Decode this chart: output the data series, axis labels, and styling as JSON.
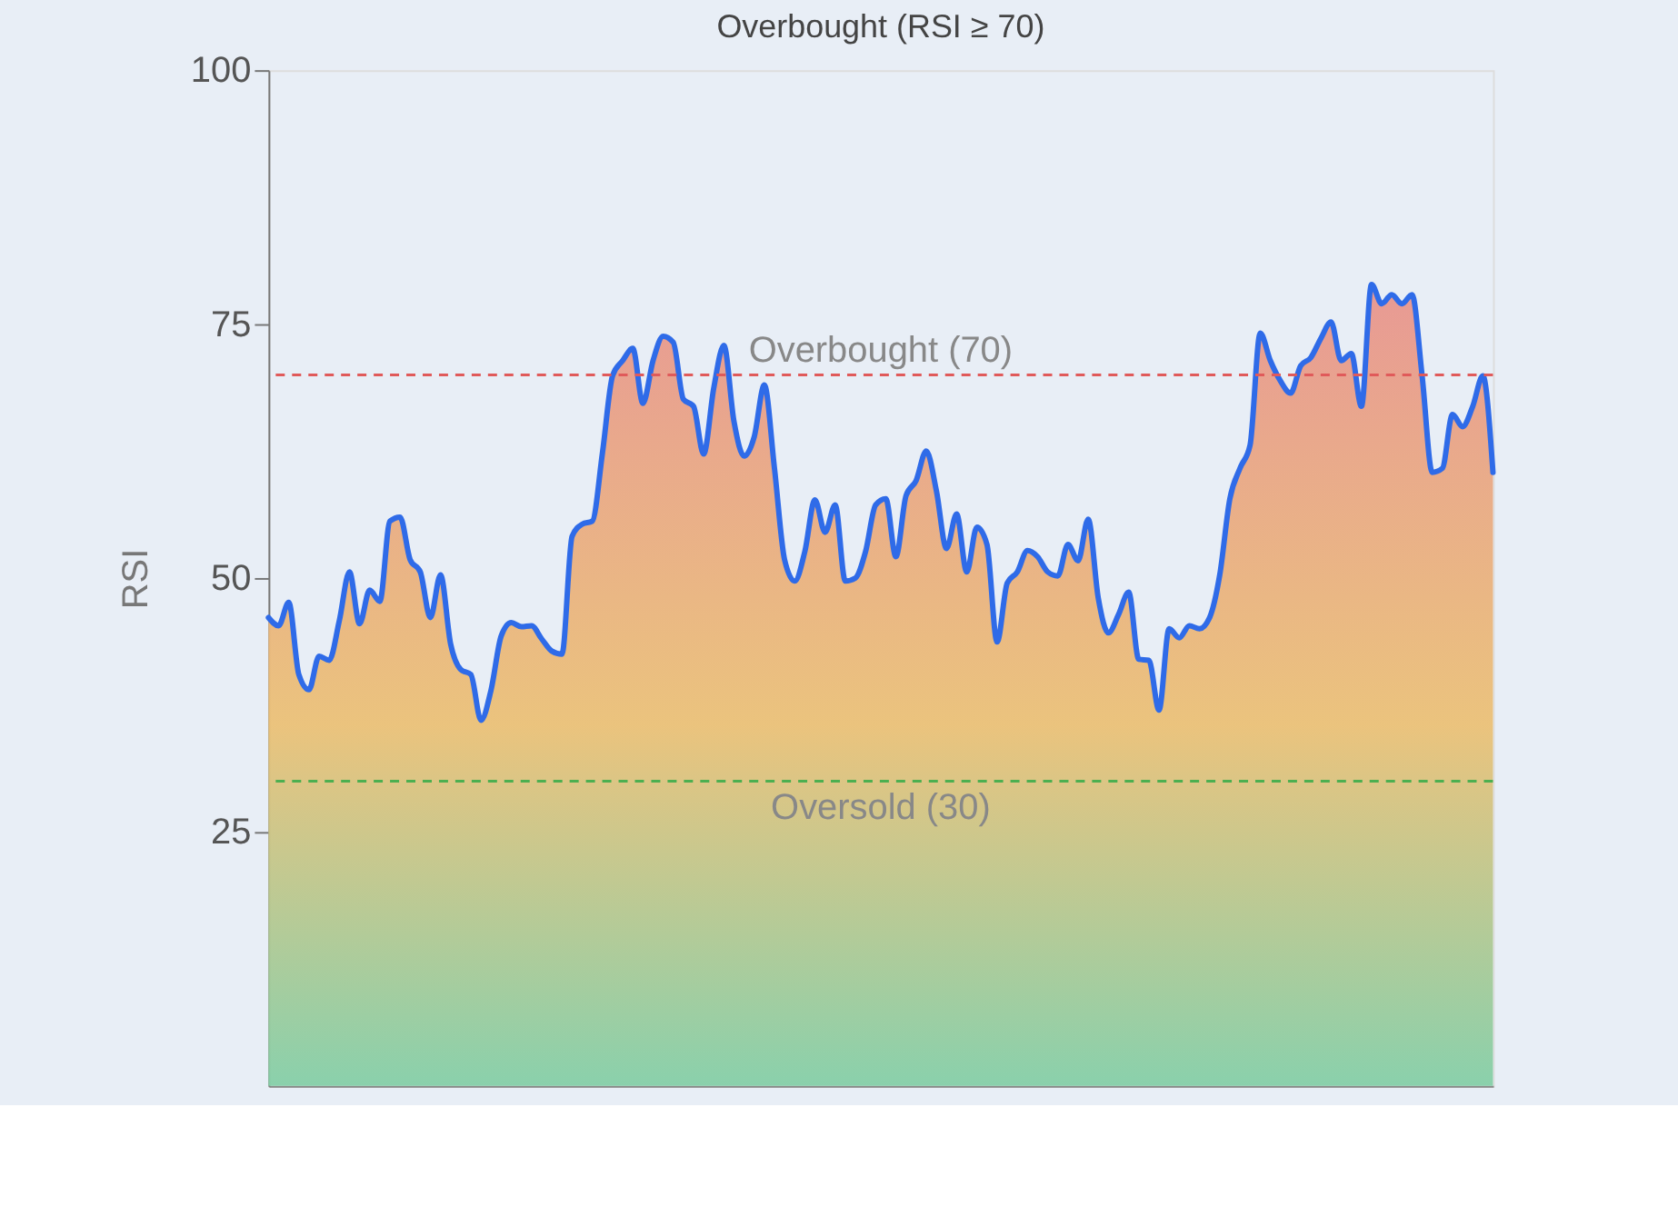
{
  "chart_data": {
    "type": "area",
    "annotations": [
      "Overbought (RSI ≥ 70)"
    ],
    "ylabel": "RSI",
    "categories": [
      null,
      null,
      null,
      null,
      null,
      null,
      null,
      null,
      null,
      null,
      null,
      null,
      null,
      null,
      null,
      null,
      null,
      null,
      null,
      null,
      null,
      null,
      null,
      null,
      null,
      null,
      null,
      null,
      null,
      null,
      null,
      null,
      null,
      null,
      null,
      null,
      null,
      null,
      null,
      null,
      null,
      null,
      null,
      null,
      null,
      null,
      null,
      null,
      null,
      null,
      null,
      null,
      null,
      null,
      null,
      null,
      null,
      null,
      null,
      null,
      null,
      null,
      null,
      null,
      null,
      null,
      null,
      null,
      null,
      null,
      null,
      null,
      null,
      null,
      null,
      null,
      null,
      null,
      null,
      null,
      null,
      null,
      null,
      null,
      null,
      null,
      null,
      null,
      null,
      null,
      null,
      null,
      null,
      null,
      null,
      null,
      null,
      null,
      null,
      null,
      null,
      null,
      null,
      null,
      null,
      null,
      null,
      null,
      null,
      null,
      null,
      null,
      null,
      null,
      null,
      null,
      null,
      null,
      null,
      null,
      null,
      null
    ],
    "series": [
      {
        "color": "#2f6be8",
        "values": [
          46.1,
          45.3,
          47.6,
          40.5,
          39,
          42.3,
          41.9,
          45.8,
          50.6,
          45.5,
          48.8,
          47.7,
          55.6,
          56,
          51.8,
          50.6,
          46.1,
          50.3,
          43.5,
          41,
          40.5,
          36,
          39,
          44.3,
          45.6,
          45.2,
          45.3,
          44,
          42.8,
          42.5,
          54.1,
          55.3,
          55.6,
          62.3,
          69.9,
          71.4,
          72.6,
          67.2,
          71.4,
          73.8,
          73.2,
          67.6,
          66.9,
          62.2,
          68.7,
          72.9,
          65.4,
          62,
          63.9,
          69,
          60.8,
          51.8,
          49.7,
          52.6,
          57.7,
          54.5,
          57.2,
          49.7,
          50,
          52.6,
          57.2,
          57.8,
          52.1,
          58.1,
          59.6,
          62.5,
          58.6,
          52.9,
          56.3,
          50.6,
          55,
          53.3,
          43.7,
          49.5,
          50.6,
          52.7,
          52.1,
          50.6,
          50.2,
          53.3,
          51.7,
          55.8,
          48,
          44.6,
          46.4,
          48.6,
          42,
          41.9,
          37,
          45,
          44.1,
          45.3,
          45,
          46.1,
          50.3,
          57.8,
          60.8,
          63.1,
          74.1,
          71.4,
          69.4,
          68.2,
          70.9,
          71.7,
          73.6,
          75.2,
          71.4,
          72.1,
          66.9,
          78.9,
          77,
          77.9,
          77,
          77.9,
          69.9,
          60.4,
          60.8,
          66.1,
          64.9,
          66.9,
          69.9,
          60.4
        ]
      }
    ],
    "ylim": [
      0,
      100
    ],
    "yticks": [
      25,
      50,
      75,
      100
    ],
    "tick_labels": "y",
    "grid": false,
    "ref_lines": [
      {
        "axis": "y",
        "value": 70,
        "label": "Overbought (70)",
        "color": "#e05a5a",
        "line_style": "dashed"
      },
      {
        "axis": "y",
        "value": 30,
        "label": "Oversold (30)",
        "color": "#4caf50",
        "line_style": "dashed"
      }
    ]
  }
}
